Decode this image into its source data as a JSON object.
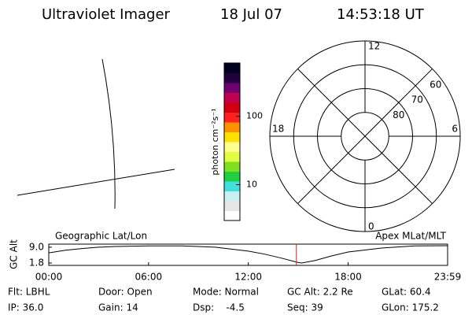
{
  "header": {
    "instrument": "Ultraviolet Imager",
    "date": "18 Jul 07",
    "time": "14:53:18 UT"
  },
  "colorbar": {
    "label": "photon cm⁻²s⁻¹",
    "lim": [
      3,
      600
    ],
    "ticks": [
      10,
      100
    ],
    "log": true,
    "colors": [
      "#ffffff",
      "#e6e6e6",
      "#c8f0f0",
      "#40e0e0",
      "#20d040",
      "#80e020",
      "#e0ff40",
      "#ffff90",
      "#ffe000",
      "#ff9000",
      "#ff2020",
      "#d00010",
      "#c00050",
      "#700070",
      "#200040",
      "#000020"
    ]
  },
  "polar": {
    "mlt_labels": [
      "12",
      "18",
      "6",
      "0"
    ],
    "lat_labels": [
      80,
      70,
      60
    ],
    "lat_min": 50
  },
  "chart_data": {
    "type": "line",
    "title_left": "Geographic Lat/Lon",
    "title_right": "Apex MLat/MLT",
    "ylabel": "GC Alt",
    "x": [
      0,
      1,
      2,
      3,
      4,
      6,
      8,
      10,
      12,
      13,
      14,
      15,
      15.2,
      16,
      17,
      18,
      20,
      22,
      23.983
    ],
    "values": [
      6.4,
      7.6,
      8.4,
      9.0,
      9.3,
      9.6,
      9.6,
      9.0,
      7.2,
      5.8,
      4.0,
      2.0,
      1.8,
      2.9,
      5.0,
      6.8,
      8.6,
      9.6,
      9.7
    ],
    "color": "#000000",
    "marker_time": 14.888,
    "marker_color": "#e02020",
    "xlim": [
      0,
      23.983
    ],
    "xticks": [
      {
        "value": 0,
        "label": "00:00"
      },
      {
        "value": 6,
        "label": "06:00"
      },
      {
        "value": 12,
        "label": "12:00"
      },
      {
        "value": 18,
        "label": "18:00"
      },
      {
        "value": 23.983,
        "label": "23:59"
      }
    ],
    "ylim": [
      0.7,
      10.4
    ],
    "yticks": [
      {
        "value": 9,
        "label": "9.0"
      },
      {
        "value": 1.8,
        "label": "1.8"
      }
    ]
  },
  "info": {
    "rows": [
      [
        "Flt: LBHL",
        "Door: Open",
        "Mode: Normal",
        "GC Alt: 2.2 Re",
        "GLat: 60.4"
      ],
      [
        "IP: 36.0",
        "Gain: 14",
        "Dsp:    -4.5",
        "Seq: 39",
        "GLon: 175.2"
      ]
    ]
  }
}
